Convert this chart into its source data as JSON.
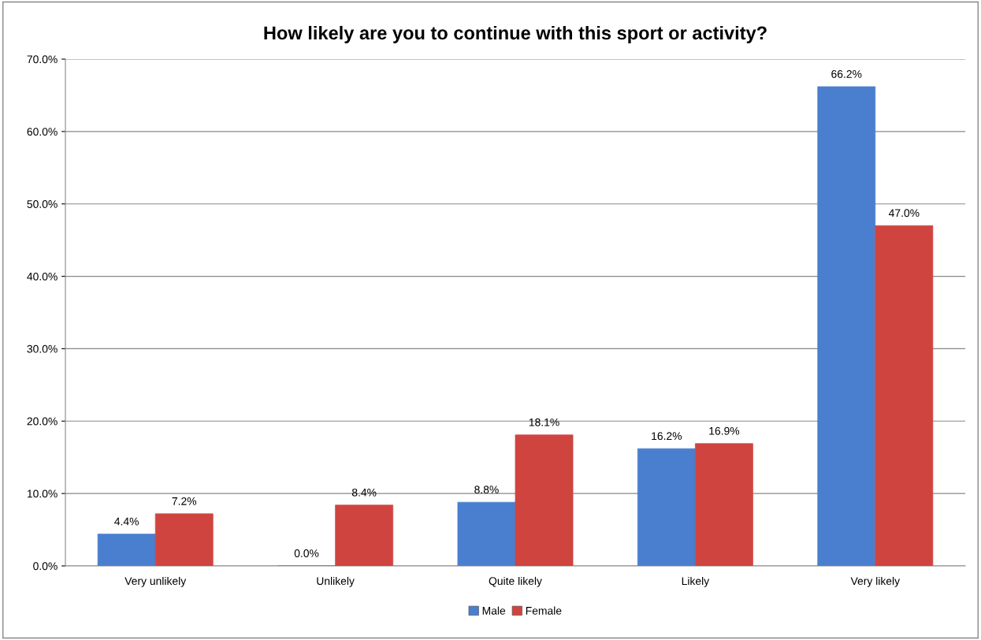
{
  "chart_data": {
    "type": "bar",
    "title": "How likely are you to continue with this sport or activity?",
    "categories": [
      "Very unlikely",
      "Unlikely",
      "Quite likely",
      "Likely",
      "Very likely"
    ],
    "series": [
      {
        "name": "Male",
        "color": "#4a7fd0",
        "values": [
          4.4,
          0.0,
          8.8,
          16.2,
          66.2
        ],
        "value_labels": [
          "4.4%",
          "0.0%",
          "8.8%",
          "16.2%",
          "66.2%"
        ]
      },
      {
        "name": "Female",
        "color": "#d04440",
        "values": [
          7.2,
          8.4,
          18.1,
          16.9,
          47.0
        ],
        "value_labels": [
          "7.2%",
          "8.4%",
          "18.1%",
          "16.9%",
          "47.0%"
        ]
      }
    ],
    "ylim": [
      0,
      70
    ],
    "yticks": [
      {
        "value": 0,
        "label": "0.0%"
      },
      {
        "value": 10,
        "label": "10.0%"
      },
      {
        "value": 20,
        "label": "20.0%"
      },
      {
        "value": 30,
        "label": "30.0%"
      },
      {
        "value": 40,
        "label": "40.0%"
      },
      {
        "value": 50,
        "label": "50.0%"
      },
      {
        "value": 60,
        "label": "60.0%"
      },
      {
        "value": 70,
        "label": "70.0%"
      }
    ],
    "grid": "y",
    "legend": "bottom"
  }
}
